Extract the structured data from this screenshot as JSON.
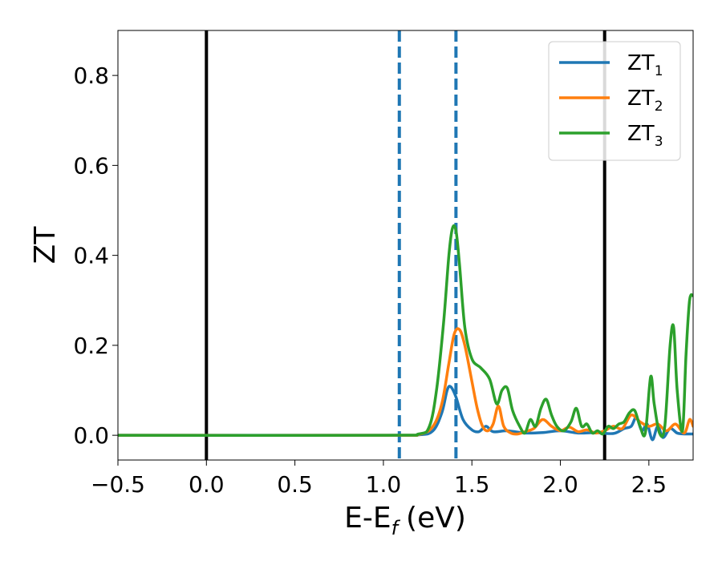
{
  "chart_data": {
    "type": "line",
    "xlabel_main": "E-E",
    "xlabel_sub": "f",
    "xlabel_unit": "(eV)",
    "ylabel": "ZT",
    "xlim": [
      -0.5,
      2.75
    ],
    "ylim": [
      -0.055,
      0.9
    ],
    "xticks": [
      {
        "value": -0.5,
        "label": "−0.5"
      },
      {
        "value": 0.0,
        "label": "0.0"
      },
      {
        "value": 0.5,
        "label": "0.5"
      },
      {
        "value": 1.0,
        "label": "1.0"
      },
      {
        "value": 1.5,
        "label": "1.5"
      },
      {
        "value": 2.0,
        "label": "2.0"
      },
      {
        "value": 2.5,
        "label": "2.5"
      }
    ],
    "yticks": [
      {
        "value": 0.0,
        "label": "0.0"
      },
      {
        "value": 0.2,
        "label": "0.2"
      },
      {
        "value": 0.4,
        "label": "0.4"
      },
      {
        "value": 0.6,
        "label": "0.6"
      },
      {
        "value": 0.8,
        "label": "0.8"
      }
    ],
    "vlines": [
      {
        "x": 0.0,
        "style": "solid",
        "color": "#000000"
      },
      {
        "x": 1.09,
        "style": "dashed",
        "color": "#1f77b4"
      },
      {
        "x": 1.41,
        "style": "dashed",
        "color": "#1f77b4"
      },
      {
        "x": 2.25,
        "style": "solid",
        "color": "#000000"
      }
    ],
    "legend_position": "top-right",
    "series": [
      {
        "name": "ZT",
        "name_sub": "1",
        "color": "#1f77b4",
        "x": [
          -0.5,
          1.0,
          1.2,
          1.28,
          1.33,
          1.36,
          1.38,
          1.41,
          1.45,
          1.5,
          1.54,
          1.58,
          1.62,
          1.7,
          1.8,
          1.9,
          2.0,
          2.1,
          2.2,
          2.3,
          2.36,
          2.4,
          2.43,
          2.46,
          2.49,
          2.52,
          2.55,
          2.58,
          2.62,
          2.66,
          2.7,
          2.75
        ],
        "y": [
          0.0,
          0.0,
          0.001,
          0.01,
          0.05,
          0.1,
          0.108,
          0.085,
          0.035,
          0.012,
          0.008,
          0.02,
          0.008,
          0.01,
          0.005,
          0.006,
          0.01,
          0.005,
          0.006,
          0.004,
          0.015,
          0.02,
          0.04,
          0.01,
          0.025,
          -0.01,
          0.02,
          -0.005,
          0.015,
          0.005,
          0.003,
          0.003
        ]
      },
      {
        "name": "ZT",
        "name_sub": "2",
        "color": "#ff7f0e",
        "x": [
          -0.5,
          1.0,
          1.2,
          1.28,
          1.33,
          1.37,
          1.4,
          1.43,
          1.46,
          1.5,
          1.53,
          1.56,
          1.59,
          1.62,
          1.65,
          1.68,
          1.72,
          1.76,
          1.8,
          1.85,
          1.9,
          1.95,
          2.0,
          2.05,
          2.1,
          2.15,
          2.2,
          2.25,
          2.3,
          2.35,
          2.4,
          2.45,
          2.5,
          2.55,
          2.6,
          2.65,
          2.7,
          2.73,
          2.75
        ],
        "y": [
          0.0,
          0.0,
          0.002,
          0.02,
          0.07,
          0.16,
          0.225,
          0.235,
          0.2,
          0.12,
          0.06,
          0.02,
          0.01,
          0.025,
          0.065,
          0.02,
          0.005,
          0.003,
          0.008,
          0.015,
          0.035,
          0.02,
          0.01,
          0.018,
          0.008,
          0.012,
          0.005,
          0.01,
          0.02,
          0.015,
          0.045,
          0.03,
          0.02,
          0.025,
          0.01,
          0.025,
          0.005,
          0.035,
          0.02
        ]
      },
      {
        "name": "ZT",
        "name_sub": "3",
        "color": "#2ca02c",
        "x": [
          -0.5,
          1.0,
          1.2,
          1.26,
          1.3,
          1.34,
          1.37,
          1.39,
          1.41,
          1.43,
          1.46,
          1.5,
          1.55,
          1.6,
          1.64,
          1.67,
          1.7,
          1.73,
          1.77,
          1.8,
          1.83,
          1.86,
          1.89,
          1.92,
          1.95,
          1.98,
          2.02,
          2.06,
          2.09,
          2.12,
          2.15,
          2.18,
          2.21,
          2.24,
          2.27,
          2.3,
          2.33,
          2.36,
          2.39,
          2.42,
          2.45,
          2.48,
          2.51,
          2.53,
          2.56,
          2.59,
          2.62,
          2.64,
          2.66,
          2.69,
          2.71,
          2.73,
          2.75
        ],
        "y": [
          0.0,
          0.0,
          0.003,
          0.02,
          0.1,
          0.25,
          0.4,
          0.46,
          0.455,
          0.38,
          0.24,
          0.17,
          0.15,
          0.125,
          0.07,
          0.1,
          0.105,
          0.055,
          0.02,
          0.005,
          0.035,
          0.02,
          0.06,
          0.08,
          0.045,
          0.02,
          0.01,
          0.03,
          0.06,
          0.02,
          0.025,
          0.005,
          0.01,
          0.003,
          0.02,
          0.015,
          0.025,
          0.03,
          0.05,
          0.055,
          0.02,
          0.005,
          0.13,
          0.07,
          0.005,
          0.02,
          0.2,
          0.24,
          0.1,
          0.01,
          0.18,
          0.3,
          0.31
        ]
      }
    ]
  }
}
